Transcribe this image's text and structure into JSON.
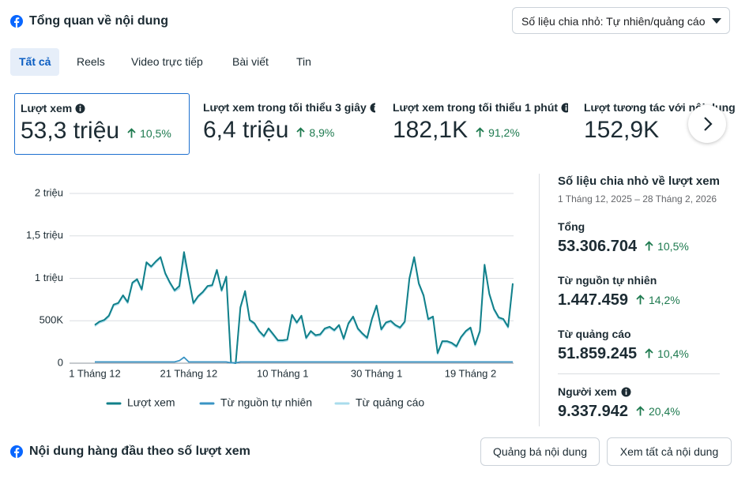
{
  "header": {
    "title": "Tổng quan về nội dung",
    "dropdown": "Số liệu chia nhỏ: Tự nhiên/quảng cáo"
  },
  "tabs": [
    "Tất cả",
    "Reels",
    "Video trực tiếp",
    "Bài viết",
    "Tin"
  ],
  "metrics": [
    {
      "label": "Lượt xem",
      "value": "53,3 triệu",
      "change": "10,5%"
    },
    {
      "label": "Lượt xem trong tối thiểu 3 giây",
      "value": "6,4 triệu",
      "change": "8,9%"
    },
    {
      "label": "Lượt xem trong tối thiểu 1 phút",
      "value": "182,1K",
      "change": "91,2%"
    },
    {
      "label": "Lượt tương tác với nội dung",
      "value": "152,9K"
    }
  ],
  "chart_data": {
    "type": "line",
    "categories": [
      "1 Tháng 12",
      null,
      null,
      null,
      null,
      null,
      null,
      null,
      null,
      null,
      null,
      null,
      null,
      null,
      null,
      null,
      null,
      null,
      null,
      null,
      "21 Tháng 12",
      null,
      null,
      null,
      null,
      null,
      null,
      null,
      null,
      null,
      null,
      null,
      null,
      null,
      null,
      null,
      null,
      null,
      null,
      null,
      "10 Tháng 1",
      null,
      null,
      null,
      null,
      null,
      null,
      null,
      null,
      null,
      null,
      null,
      null,
      null,
      null,
      null,
      null,
      null,
      null,
      null,
      "30 Tháng 1",
      null,
      null,
      null,
      null,
      null,
      null,
      null,
      null,
      null,
      null,
      null,
      null,
      null,
      null,
      null,
      null,
      null,
      null,
      null,
      "19 Tháng 2",
      null,
      null,
      null,
      null,
      null,
      null,
      null,
      null,
      null
    ],
    "series": [
      {
        "name": "Lượt xem",
        "color": "#11808a",
        "values": [
          450000,
          490000,
          510000,
          560000,
          690000,
          710000,
          800000,
          720000,
          950000,
          990000,
          870000,
          1190000,
          1140000,
          1200000,
          1250000,
          1060000,
          950000,
          860000,
          910000,
          1310000,
          1000000,
          710000,
          790000,
          840000,
          910000,
          920000,
          1100000,
          860000,
          1020000,
          10000,
          0,
          660000,
          850000,
          510000,
          470000,
          380000,
          320000,
          410000,
          340000,
          270000,
          270000,
          280000,
          570000,
          480000,
          560000,
          300000,
          380000,
          330000,
          340000,
          410000,
          430000,
          390000,
          450000,
          290000,
          470000,
          550000,
          410000,
          350000,
          300000,
          520000,
          680000,
          400000,
          480000,
          500000,
          450000,
          420000,
          490000,
          1000000,
          1250000,
          940000,
          800000,
          520000,
          550000,
          120000,
          260000,
          260000,
          240000,
          200000,
          310000,
          380000,
          420000,
          220000,
          380000,
          1160000,
          820000,
          640000,
          540000,
          520000,
          430000,
          940000
        ]
      },
      {
        "name": "Từ nguồn tự nhiên",
        "color": "#3a94c4",
        "values": [
          15000,
          15000,
          15000,
          15000,
          15000,
          15000,
          15000,
          15000,
          15000,
          15000,
          15000,
          15000,
          15000,
          15000,
          15000,
          15000,
          15000,
          15000,
          30000,
          70000,
          15000,
          15000,
          15000,
          15000,
          15000,
          15000,
          15000,
          15000,
          15000,
          5000,
          5000,
          15000,
          15000,
          15000,
          15000,
          15000,
          15000,
          15000,
          15000,
          15000,
          15000,
          15000,
          15000,
          15000,
          15000,
          15000,
          15000,
          15000,
          15000,
          15000,
          15000,
          15000,
          15000,
          15000,
          15000,
          15000,
          15000,
          15000,
          15000,
          15000,
          15000,
          15000,
          15000,
          15000,
          15000,
          15000,
          15000,
          15000,
          15000,
          15000,
          15000,
          15000,
          15000,
          15000,
          15000,
          15000,
          15000,
          15000,
          15000,
          15000,
          15000,
          15000,
          15000,
          15000,
          15000,
          15000,
          15000,
          15000,
          15000,
          15000
        ]
      },
      {
        "name": "Từ quảng cáo",
        "color": "#a9dcec",
        "values": [
          435000,
          475000,
          495000,
          545000,
          675000,
          695000,
          785000,
          705000,
          935000,
          975000,
          855000,
          1175000,
          1125000,
          1185000,
          1235000,
          1045000,
          935000,
          845000,
          880000,
          1240000,
          985000,
          695000,
          775000,
          825000,
          895000,
          905000,
          1085000,
          845000,
          1005000,
          5000,
          0,
          645000,
          835000,
          495000,
          455000,
          365000,
          305000,
          395000,
          325000,
          255000,
          255000,
          265000,
          555000,
          465000,
          545000,
          285000,
          365000,
          315000,
          325000,
          395000,
          415000,
          375000,
          435000,
          275000,
          455000,
          535000,
          395000,
          335000,
          285000,
          505000,
          665000,
          385000,
          465000,
          485000,
          435000,
          405000,
          475000,
          985000,
          1235000,
          925000,
          785000,
          505000,
          535000,
          105000,
          245000,
          245000,
          225000,
          185000,
          295000,
          365000,
          405000,
          205000,
          365000,
          1145000,
          805000,
          625000,
          525000,
          505000,
          415000,
          925000
        ]
      }
    ],
    "ylim": [
      0,
      2000000
    ],
    "yticks": [
      0,
      {
        "value": 500000,
        "label": "500K"
      },
      {
        "value": 1000000,
        "label": "1 triệu"
      },
      {
        "value": 1500000,
        "label": "1,5 triệu"
      },
      {
        "value": 2000000,
        "label": "2 triệu"
      }
    ],
    "grid": true,
    "legend": "bottom"
  },
  "breakdown": {
    "title": "Số liệu chia nhỏ về lượt xem",
    "date_range": "1 Tháng 12, 2025 – 28 Tháng 2, 2026",
    "items": [
      {
        "label": "Tổng",
        "value": "53.306.704",
        "change": "10,5%"
      },
      {
        "label": "Từ nguồn tự nhiên",
        "value": "1.447.459",
        "change": "14,2%"
      },
      {
        "label": "Từ quảng cáo",
        "value": "51.859.245",
        "change": "10,4%"
      },
      {
        "label": "Người xem",
        "value": "9.337.942",
        "change": "20,4%"
      }
    ]
  },
  "footer": {
    "title": "Nội dung hàng đầu theo số lượt xem",
    "buttons": [
      "Quảng bá nội dung",
      "Xem tất cả nội dung"
    ]
  }
}
